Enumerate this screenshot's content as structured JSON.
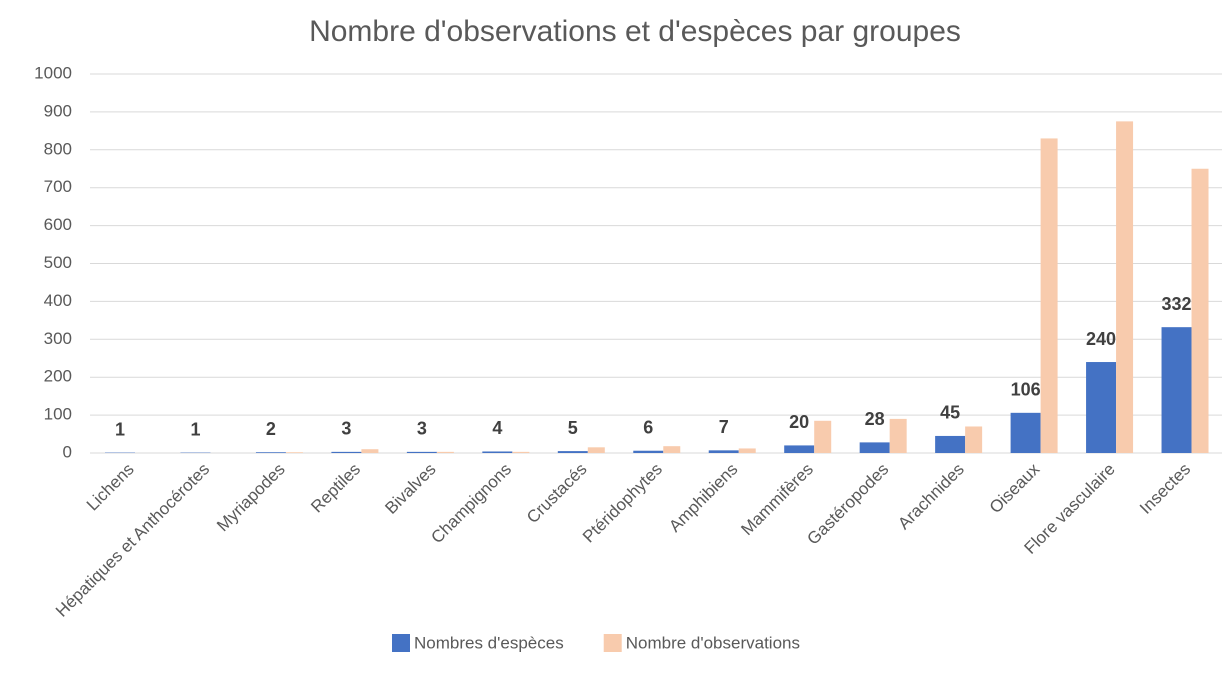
{
  "chart_data": {
    "type": "bar",
    "title": "Nombre d'observations et d'espèces par groupes",
    "categories": [
      "Lichens",
      "Hépatiques et Anthocérotes",
      "Myriapodes",
      "Reptiles",
      "Bivalves",
      "Champignons",
      "Crustacés",
      "Ptéridophytes",
      "Amphibiens",
      "Mammifères",
      "Gastéropodes",
      "Arachnides",
      "Oiseaux",
      "Flore vasculaire",
      "Insectes"
    ],
    "series": [
      {
        "name": "Nombres d'espèces",
        "color": "#4472c4",
        "values": [
          1,
          1,
          2,
          3,
          3,
          4,
          5,
          6,
          7,
          20,
          28,
          45,
          106,
          240,
          332
        ],
        "data_labels": true
      },
      {
        "name": "Nombre d'observations",
        "color": "#f8cbad",
        "values": [
          0,
          0,
          2,
          10,
          3,
          3,
          15,
          18,
          12,
          85,
          90,
          70,
          830,
          875,
          750
        ]
      }
    ],
    "ylim": [
      0,
      1000
    ],
    "yticks": [
      0,
      100,
      200,
      300,
      400,
      500,
      600,
      700,
      800,
      900,
      1000
    ],
    "grid": true,
    "legend": "bottom"
  }
}
